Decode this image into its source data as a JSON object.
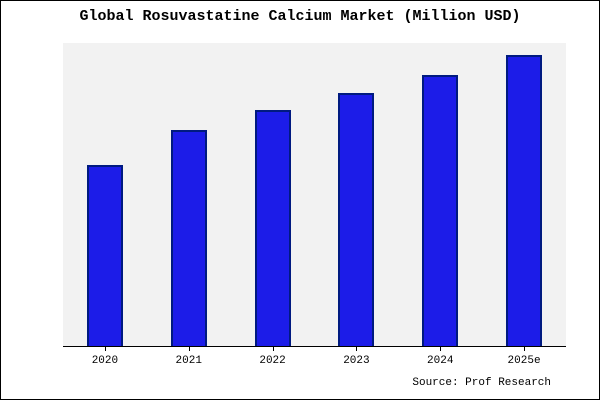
{
  "colors": {
    "bar_fill": "#1c1ce8",
    "bar_border": "#001a80",
    "axis": "#000000"
  },
  "chart_data": {
    "type": "bar",
    "title": "Global Rosuvastatine Calcium Market (Million USD)",
    "categories": [
      "2020",
      "2021",
      "2022",
      "2023",
      "2024",
      "2025e"
    ],
    "values": [
      62,
      74,
      81,
      87,
      93,
      100
    ],
    "xlabel": "",
    "ylabel": "",
    "ylim": [
      0,
      104
    ],
    "grid": false,
    "legend": false,
    "y_axis_labels_visible": false,
    "source_note": "Source: Prof Research"
  }
}
